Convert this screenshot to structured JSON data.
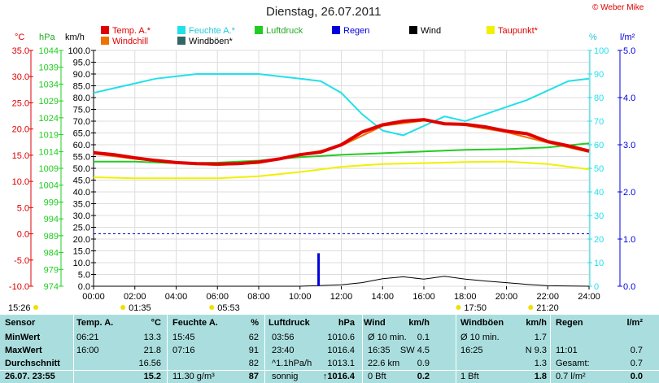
{
  "header": {
    "title": "Dienstag, 26.07.2011",
    "copyright": "© Weber Mike"
  },
  "axes": {
    "temp_unit": "°C",
    "hpa_unit": "hPa",
    "kmh_unit": "km/h",
    "pct_unit": "%",
    "rain_unit": "l/m²",
    "temp_ticks": [
      "35.0",
      "30.0",
      "25.0",
      "20.0",
      "15.0",
      "10.0",
      "5.0",
      "0.0",
      "-5.0",
      "-10.0"
    ],
    "hpa_ticks": [
      "1044",
      "1039",
      "1034",
      "1029",
      "1024",
      "1019",
      "1014",
      "1009",
      "1004",
      "999",
      "994",
      "989",
      "984",
      "979",
      "974"
    ],
    "kmh_ticks": [
      "100.0",
      "95.0",
      "90.0",
      "85.0",
      "80.0",
      "75.0",
      "70.0",
      "65.0",
      "60.0",
      "55.0",
      "50.0",
      "45.0",
      "40.0",
      "35.0",
      "30.0",
      "25.0",
      "20.0",
      "15.0",
      "10.0",
      "5.0",
      "0.0"
    ],
    "pct_ticks": [
      "100",
      "90",
      "80",
      "70",
      "60",
      "50",
      "40",
      "30",
      "20",
      "10",
      "0"
    ],
    "rain_ticks": [
      "5.0",
      "4.0",
      "3.0",
      "2.0",
      "1.0",
      "0.0"
    ],
    "x_ticks": [
      "00:00",
      "02:00",
      "04:00",
      "06:00",
      "08:00",
      "10:00",
      "12:00",
      "14:00",
      "16:00",
      "18:00",
      "20:00",
      "22:00",
      "24:00"
    ]
  },
  "legend": [
    {
      "label": "Temp. A.*",
      "color": "#e00000"
    },
    {
      "label": "Feuchte A.*",
      "color": "#22e0ea"
    },
    {
      "label": "Luftdruck",
      "color": "#22cc22"
    },
    {
      "label": "Regen",
      "color": "#0000dd"
    },
    {
      "label": "Wind",
      "color": "#000000"
    },
    {
      "label": "Taupunkt*",
      "color": "#f0f000"
    },
    {
      "label": "Windchill",
      "color": "#f07000"
    },
    {
      "label": "Windböen*",
      "color": "#336666"
    }
  ],
  "events": {
    "sunrise": "05:53",
    "sunset": "21:20",
    "moonrise": "01:35",
    "moonset": "17:50",
    "left_time": "15:26"
  },
  "chart_data": {
    "type": "line",
    "x_unit": "hour",
    "series": [
      {
        "name": "Temp. A.*",
        "axis": "°C",
        "x": [
          0,
          1,
          2,
          3,
          4,
          5,
          6,
          7,
          8,
          9,
          10,
          11,
          12,
          13,
          14,
          15,
          16,
          17,
          18,
          19,
          20,
          21,
          22,
          23,
          24
        ],
        "values": [
          15.5,
          15.1,
          14.5,
          14.0,
          13.6,
          13.4,
          13.3,
          13.4,
          13.7,
          14.3,
          15.1,
          15.6,
          17.0,
          19.4,
          20.8,
          21.5,
          21.8,
          21.0,
          20.9,
          20.4,
          19.6,
          19.1,
          17.6,
          16.8,
          15.8
        ]
      },
      {
        "name": "Feuchte A.*",
        "axis": "%",
        "x": [
          0,
          1,
          2,
          3,
          4,
          5,
          6,
          7,
          8,
          9,
          10,
          11,
          12,
          13,
          14,
          15,
          16,
          17,
          18,
          19,
          20,
          21,
          22,
          23,
          24
        ],
        "values": [
          82,
          84,
          86,
          88,
          89,
          90,
          90,
          90,
          90,
          89,
          88,
          87,
          82,
          73,
          66,
          64,
          68,
          72,
          70,
          73,
          76,
          79,
          83,
          87,
          88
        ]
      },
      {
        "name": "Luftdruck",
        "axis": "hPa",
        "x": [
          0,
          2,
          4,
          6,
          8,
          10,
          12,
          14,
          16,
          18,
          20,
          22,
          24
        ],
        "values": [
          1011.0,
          1011.0,
          1010.5,
          1010.7,
          1011.3,
          1012.3,
          1013.0,
          1013.5,
          1014.0,
          1014.5,
          1014.7,
          1015.2,
          1016.4
        ]
      },
      {
        "name": "Taupunkt*",
        "axis": "°C",
        "x": [
          0,
          2,
          4,
          6,
          8,
          10,
          12,
          14,
          16,
          18,
          20,
          22,
          24
        ],
        "values": [
          10.8,
          10.6,
          10.6,
          10.6,
          11.0,
          11.8,
          12.8,
          13.3,
          13.5,
          13.7,
          13.8,
          13.3,
          12.3
        ]
      },
      {
        "name": "Windchill",
        "axis": "°C",
        "x": [
          0,
          2,
          4,
          6,
          8,
          10,
          12,
          14,
          16,
          18,
          20,
          22,
          24
        ],
        "values": [
          15.3,
          14.3,
          13.5,
          13.1,
          13.5,
          14.9,
          16.8,
          20.6,
          21.6,
          20.7,
          19.4,
          17.4,
          15.6
        ]
      },
      {
        "name": "Wind",
        "axis": "km/h",
        "x": [
          0,
          10,
          12,
          13,
          14,
          15,
          16,
          17,
          18,
          19,
          20,
          21,
          22,
          24
        ],
        "values": [
          0,
          0,
          0.6,
          1.5,
          3.2,
          4.0,
          3.0,
          4.2,
          3.0,
          2.2,
          1.5,
          0.8,
          0.2,
          0
        ]
      },
      {
        "name": "Regen",
        "axis": "l/m²",
        "x": [
          10.9
        ],
        "values": [
          0.7
        ]
      }
    ],
    "ylim_temp": [
      -10,
      35
    ],
    "ylim_hpa": [
      974,
      1044
    ],
    "ylim_kmh": [
      0,
      100
    ],
    "ylim_pct": [
      0,
      100
    ],
    "ylim_rain": [
      0,
      5
    ],
    "reference_line": {
      "axis": "°C",
      "value": 0.0
    }
  },
  "table": {
    "headers": [
      "Sensor",
      "Temp. A.",
      "°C",
      "Feuchte A.",
      "%",
      "Luftdruck",
      "hPa",
      "Wind",
      "km/h",
      "Windböen",
      "km/h",
      "Regen",
      "l/m²"
    ],
    "rows": [
      {
        "label": "MinWert",
        "c": [
          "06:21",
          "13.3",
          "15:45",
          "62",
          "03:56",
          "1010.6",
          "Ø 10 min.",
          "0.1",
          "Ø 10 min.",
          "1.7",
          "",
          ""
        ]
      },
      {
        "label": "MaxWert",
        "c": [
          "16:00",
          "21.8",
          "07:16",
          "91",
          "23:40",
          "1016.4",
          "16:35",
          "SW 4.5",
          "16:25",
          "N 9.3",
          "11:01",
          "0.7"
        ]
      },
      {
        "label": "Durchschnitt",
        "c": [
          "",
          "16.56",
          "",
          "82",
          "^1.1hPa/h",
          "1013.1",
          "22.6 km",
          "0.9",
          "",
          "1.3",
          "Gesamt:",
          "0.7"
        ]
      },
      {
        "label": "26.07. 23:55",
        "c": [
          "",
          "15.2",
          "11.30 g/m³",
          "87",
          "sonnig",
          "↑1016.4",
          "0 Bft",
          "0.2",
          "1 Bft",
          "1.8",
          "0.7 l/m²",
          "0.0"
        ]
      }
    ]
  }
}
